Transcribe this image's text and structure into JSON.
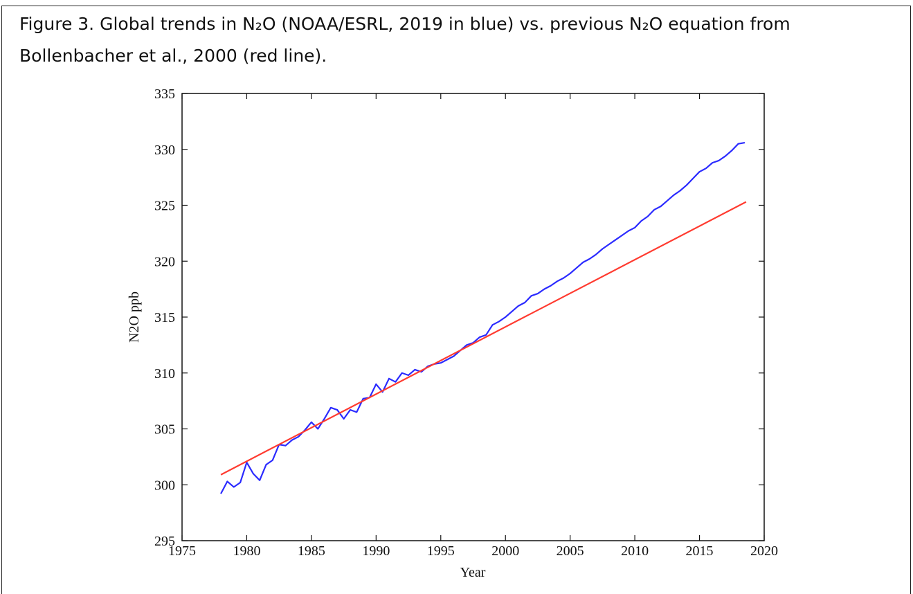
{
  "chart_data": {
    "type": "line",
    "caption": [
      "Figure 3. Global trends in N₂O (NOAA/ESRL, 2019 in blue) vs. previous N₂O equation from",
      "Bollenbacher et al., 2000 (red line)."
    ],
    "xlabel": "Year",
    "ylabel": "N2O ppb",
    "xlim": [
      1975,
      2020
    ],
    "xticks": [
      1975,
      1980,
      1985,
      1990,
      1995,
      2000,
      2005,
      2010,
      2015,
      2020
    ],
    "ylim": [
      295,
      335
    ],
    "yticks": [
      295,
      300,
      305,
      310,
      315,
      320,
      325,
      330,
      335
    ],
    "series": [
      {
        "color": "#2b2bff",
        "x": [
          1978,
          1978.5,
          1979,
          1979.5,
          1980,
          1980.5,
          1981,
          1981.5,
          1982,
          1982.5,
          1983,
          1983.5,
          1984,
          1984.5,
          1985,
          1985.5,
          1986,
          1986.5,
          1987,
          1987.5,
          1988,
          1988.5,
          1989,
          1989.5,
          1990,
          1990.5,
          1991,
          1991.5,
          1992,
          1992.5,
          1993,
          1993.5,
          1994,
          1994.5,
          1995,
          1995.5,
          1996,
          1996.5,
          1997,
          1997.5,
          1998,
          1998.5,
          1999,
          1999.5,
          2000,
          2000.5,
          2001,
          2001.5,
          2002,
          2002.5,
          2003,
          2003.5,
          2004,
          2004.5,
          2005,
          2005.5,
          2006,
          2006.5,
          2007,
          2007.5,
          2008,
          2008.5,
          2009,
          2009.5,
          2010,
          2010.5,
          2011,
          2011.5,
          2012,
          2012.5,
          2013,
          2013.5,
          2014,
          2014.5,
          2015,
          2015.5,
          2016,
          2016.5,
          2017,
          2017.5,
          2018,
          2018.5
        ],
        "values": [
          299.2,
          300.3,
          299.8,
          300.2,
          302.0,
          301.0,
          300.4,
          301.8,
          302.2,
          303.6,
          303.5,
          304.0,
          304.3,
          304.9,
          305.6,
          305.0,
          305.9,
          306.9,
          306.7,
          305.9,
          306.7,
          306.5,
          307.7,
          307.8,
          309.0,
          308.3,
          309.5,
          309.2,
          310.0,
          309.8,
          310.3,
          310.1,
          310.6,
          310.8,
          310.9,
          311.2,
          311.5,
          312.0,
          312.5,
          312.7,
          313.2,
          313.4,
          314.3,
          314.6,
          315.0,
          315.5,
          316.0,
          316.3,
          316.9,
          317.1,
          317.5,
          317.8,
          318.2,
          318.5,
          318.9,
          319.4,
          319.9,
          320.2,
          320.6,
          321.1,
          321.5,
          321.9,
          322.3,
          322.7,
          323.0,
          323.6,
          324.0,
          324.6,
          324.9,
          325.4,
          325.9,
          326.3,
          326.8,
          327.4,
          328.0,
          328.3,
          328.8,
          329.0,
          329.4,
          329.9,
          330.5,
          330.6
        ]
      },
      {
        "color": "#ff3b30",
        "x": [
          1978,
          2018.6
        ],
        "values": [
          300.9,
          325.3
        ]
      }
    ]
  }
}
